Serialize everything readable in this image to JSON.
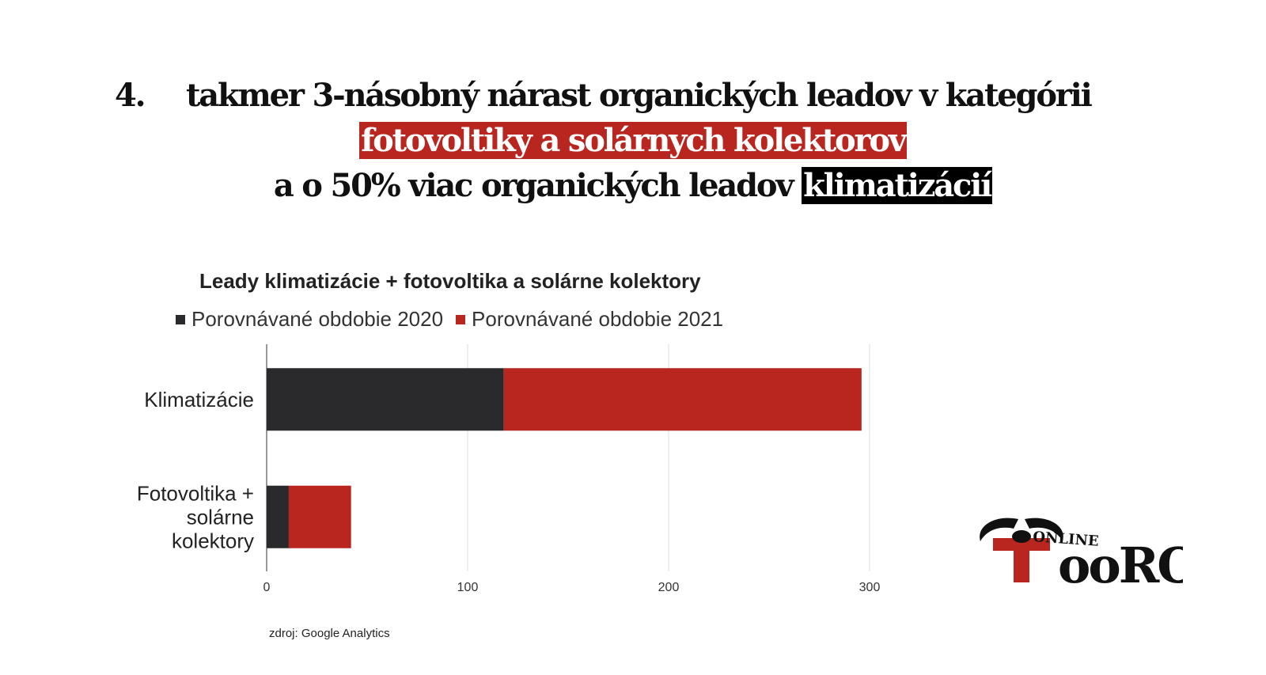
{
  "headline": {
    "number": "4.",
    "line1": "takmer 3-násobný nárast organických leadov v kategórii",
    "line2_highlight": "fotovoltiky a solárnych kolektorov",
    "line3_text": "a o 50% viac organických leadov ",
    "line3_highlight": "klimatizácií"
  },
  "colors": {
    "series_2020": "#2a2a2c",
    "series_2021": "#b9261f",
    "grid": "#dcdcdc",
    "axis": "#333333"
  },
  "chart_data": {
    "type": "bar",
    "orientation": "horizontal",
    "stacked": true,
    "title": "Leady klimatizácie + fotovoltika a solárne kolektory",
    "categories": [
      [
        "Klimatizácie"
      ],
      [
        "Fotovoltika +",
        "solárne",
        "kolektory"
      ]
    ],
    "series": [
      {
        "name": "Porovnávané obdobie 2020",
        "values": [
          118,
          11
        ]
      },
      {
        "name": "Porovnávané obdobie 2021",
        "values": [
          178,
          31
        ]
      }
    ],
    "xlim": [
      0,
      300
    ],
    "xticks": [
      "0",
      "100",
      "200",
      "300"
    ],
    "grid": true,
    "legend": "top"
  },
  "source": "zdroj: Google Analytics",
  "logo": {
    "text_small": "ONLINE",
    "text_big": "ToRO",
    "icon": "bull-horns-icon"
  }
}
